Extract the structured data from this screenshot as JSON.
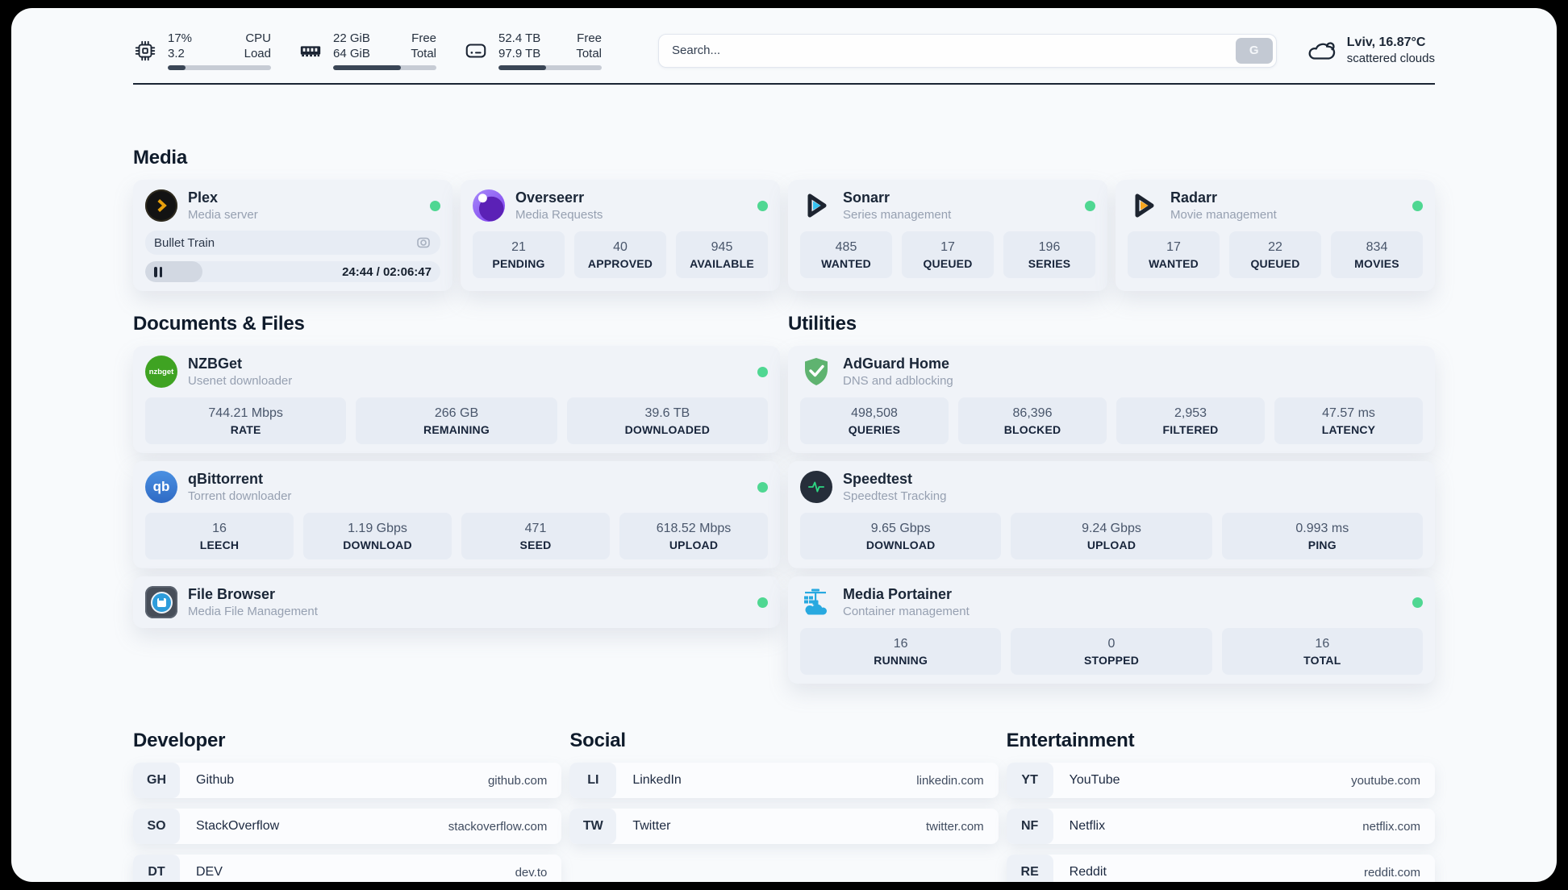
{
  "header": {
    "resources": [
      {
        "id": "cpu",
        "values": [
          "17%",
          "3.2"
        ],
        "labels": [
          "CPU",
          "Load"
        ],
        "progress_pct": 17
      },
      {
        "id": "memory",
        "values": [
          "22 GiB",
          "64 GiB"
        ],
        "labels": [
          "Free",
          "Total"
        ],
        "progress_pct": 66
      },
      {
        "id": "disk",
        "values": [
          "52.4 TB",
          "97.9 TB"
        ],
        "labels": [
          "Free",
          "Total"
        ],
        "progress_pct": 46
      }
    ],
    "search": {
      "placeholder": "Search...",
      "button_label": "G"
    },
    "weather": {
      "summary": "Lviv, 16.87°C",
      "condition": "scattered clouds"
    }
  },
  "sections": {
    "media": {
      "title": "Media"
    },
    "documents": {
      "title": "Documents & Files"
    },
    "utilities": {
      "title": "Utilities"
    },
    "developer": {
      "title": "Developer"
    },
    "social": {
      "title": "Social"
    },
    "entertainment": {
      "title": "Entertainment"
    }
  },
  "apps": {
    "plex": {
      "name": "Plex",
      "subtitle": "Media server",
      "online": true,
      "now_playing": {
        "title": "Bullet Train",
        "time_display": "24:44 / 02:06:47",
        "progress_pct": 19.5
      }
    },
    "overseerr": {
      "name": "Overseerr",
      "subtitle": "Media Requests",
      "online": true,
      "stats": [
        {
          "value": "21",
          "label": "PENDING"
        },
        {
          "value": "40",
          "label": "APPROVED"
        },
        {
          "value": "945",
          "label": "AVAILABLE"
        }
      ]
    },
    "sonarr": {
      "name": "Sonarr",
      "subtitle": "Series management",
      "online": true,
      "stats": [
        {
          "value": "485",
          "label": "WANTED"
        },
        {
          "value": "17",
          "label": "QUEUED"
        },
        {
          "value": "196",
          "label": "SERIES"
        }
      ]
    },
    "radarr": {
      "name": "Radarr",
      "subtitle": "Movie management",
      "online": true,
      "stats": [
        {
          "value": "17",
          "label": "WANTED"
        },
        {
          "value": "22",
          "label": "QUEUED"
        },
        {
          "value": "834",
          "label": "MOVIES"
        }
      ]
    },
    "nzbget": {
      "name": "NZBGet",
      "subtitle": "Usenet downloader",
      "online": true,
      "icon_text": "nzbget",
      "stats": [
        {
          "value": "744.21 Mbps",
          "label": "RATE"
        },
        {
          "value": "266 GB",
          "label": "REMAINING"
        },
        {
          "value": "39.6 TB",
          "label": "DOWNLOADED"
        }
      ]
    },
    "qbittorrent": {
      "name": "qBittorrent",
      "subtitle": "Torrent downloader",
      "online": true,
      "icon_text": "qb",
      "stats": [
        {
          "value": "16",
          "label": "LEECH"
        },
        {
          "value": "1.19 Gbps",
          "label": "DOWNLOAD"
        },
        {
          "value": "471",
          "label": "SEED"
        },
        {
          "value": "618.52 Mbps",
          "label": "UPLOAD"
        }
      ]
    },
    "filebrowser": {
      "name": "File Browser",
      "subtitle": "Media File Management",
      "online": true
    },
    "adguard": {
      "name": "AdGuard Home",
      "subtitle": "DNS and adblocking",
      "online": false,
      "stats": [
        {
          "value": "498,508",
          "label": "QUERIES"
        },
        {
          "value": "86,396",
          "label": "BLOCKED"
        },
        {
          "value": "2,953",
          "label": "FILTERED"
        },
        {
          "value": "47.57 ms",
          "label": "LATENCY"
        }
      ]
    },
    "speedtest": {
      "name": "Speedtest",
      "subtitle": "Speedtest Tracking",
      "online": false,
      "stats": [
        {
          "value": "9.65 Gbps",
          "label": "DOWNLOAD"
        },
        {
          "value": "9.24 Gbps",
          "label": "UPLOAD"
        },
        {
          "value": "0.993 ms",
          "label": "PING"
        }
      ]
    },
    "portainer": {
      "name": "Media Portainer",
      "subtitle": "Container management",
      "online": true,
      "stats": [
        {
          "value": "16",
          "label": "RUNNING"
        },
        {
          "value": "0",
          "label": "STOPPED"
        },
        {
          "value": "16",
          "label": "TOTAL"
        }
      ]
    }
  },
  "links": {
    "developer": [
      {
        "prefix": "GH",
        "name": "Github",
        "url": "github.com"
      },
      {
        "prefix": "SO",
        "name": "StackOverflow",
        "url": "stackoverflow.com"
      },
      {
        "prefix": "DT",
        "name": "DEV",
        "url": "dev.to"
      }
    ],
    "social": [
      {
        "prefix": "LI",
        "name": "LinkedIn",
        "url": "linkedin.com"
      },
      {
        "prefix": "TW",
        "name": "Twitter",
        "url": "twitter.com"
      }
    ],
    "entertainment": [
      {
        "prefix": "YT",
        "name": "YouTube",
        "url": "youtube.com"
      },
      {
        "prefix": "NF",
        "name": "Netflix",
        "url": "netflix.com"
      },
      {
        "prefix": "RE",
        "name": "Reddit",
        "url": "reddit.com"
      }
    ]
  },
  "colors": {
    "status_online": "#4fd792",
    "plex_accent": "#e8a00c",
    "overseerr_accent": "#7c3aed",
    "sonarr_accent": "#36c3f1",
    "radarr_accent": "#f7a51d",
    "nzbget_accent": "#3fa322",
    "qbittorrent_accent": "#3b7dd8",
    "adguard_accent": "#5fb370",
    "speedtest_accent": "#2ed783",
    "portainer_accent": "#28a9e0",
    "filebrowser_accent": "#2d9cdb",
    "text_primary": "#1a2637",
    "text_secondary": "#96a0b1",
    "progress_fill": "#3a4656"
  }
}
